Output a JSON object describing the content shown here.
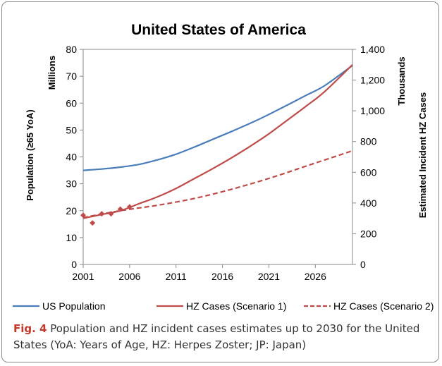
{
  "chart_data": {
    "type": "line",
    "title": "United States of America",
    "xlabel": "",
    "x_ticks": [
      "2001",
      "2006",
      "2011",
      "2016",
      "2021",
      "2026"
    ],
    "xlim": [
      2001,
      2030
    ],
    "y_left": {
      "label": "Population  (≥65 YoA)",
      "unit_label": "Millions",
      "ticks": [
        "0",
        "10",
        "20",
        "30",
        "40",
        "50",
        "60",
        "70",
        "80"
      ],
      "ylim": [
        0,
        80
      ]
    },
    "y_right": {
      "label": "Estimated Incident HZ Cases",
      "unit_label": "Thousands",
      "ticks": [
        "0",
        "200",
        "400",
        "600",
        "800",
        "1,000",
        "1,200",
        "1,400"
      ],
      "ylim": [
        0,
        1400
      ]
    },
    "series": [
      {
        "name": "US Population",
        "axis": "left",
        "color": "#4a7ebb",
        "style": "solid",
        "x": [
          2001,
          2003,
          2005,
          2007,
          2009,
          2011,
          2013,
          2015,
          2017,
          2019,
          2021,
          2023,
          2025,
          2027,
          2030
        ],
        "values": [
          35.0,
          35.5,
          36.2,
          37.2,
          38.9,
          41.0,
          43.7,
          46.6,
          49.5,
          52.5,
          55.8,
          59.3,
          62.9,
          66.5,
          74.0
        ]
      },
      {
        "name": "HZ Cases (Scenario 1)",
        "axis": "right",
        "color": "#be4b48",
        "style": "solid",
        "x": [
          2001,
          2003,
          2005,
          2007,
          2009,
          2011,
          2013,
          2015,
          2017,
          2019,
          2021,
          2023,
          2025,
          2027,
          2030
        ],
        "values": [
          300,
          325,
          350,
          395,
          440,
          495,
          560,
          625,
          695,
          770,
          850,
          940,
          1030,
          1125,
          1300
        ]
      },
      {
        "name": "HZ Cases (Scenario 2)",
        "axis": "right",
        "color": "#be4b48",
        "style": "dashed",
        "x": [
          2001,
          2005,
          2009,
          2013,
          2017,
          2021,
          2025,
          2030
        ],
        "values": [
          305,
          350,
          385,
          430,
          490,
          560,
          640,
          740
        ]
      },
      {
        "name": "",
        "axis": "right",
        "color": "#be4b48",
        "style": "markers",
        "x": [
          2001,
          2002,
          2003,
          2004,
          2005,
          2006
        ],
        "values": [
          320,
          270,
          330,
          330,
          360,
          375
        ]
      }
    ],
    "legend_position": "bottom"
  },
  "caption": {
    "fig_label": "Fig. 4",
    "text": " Population and HZ incident cases estimates up to 2030 for the United States (YoA: Years of Age, HZ: Herpes Zoster; JP: Japan)"
  }
}
